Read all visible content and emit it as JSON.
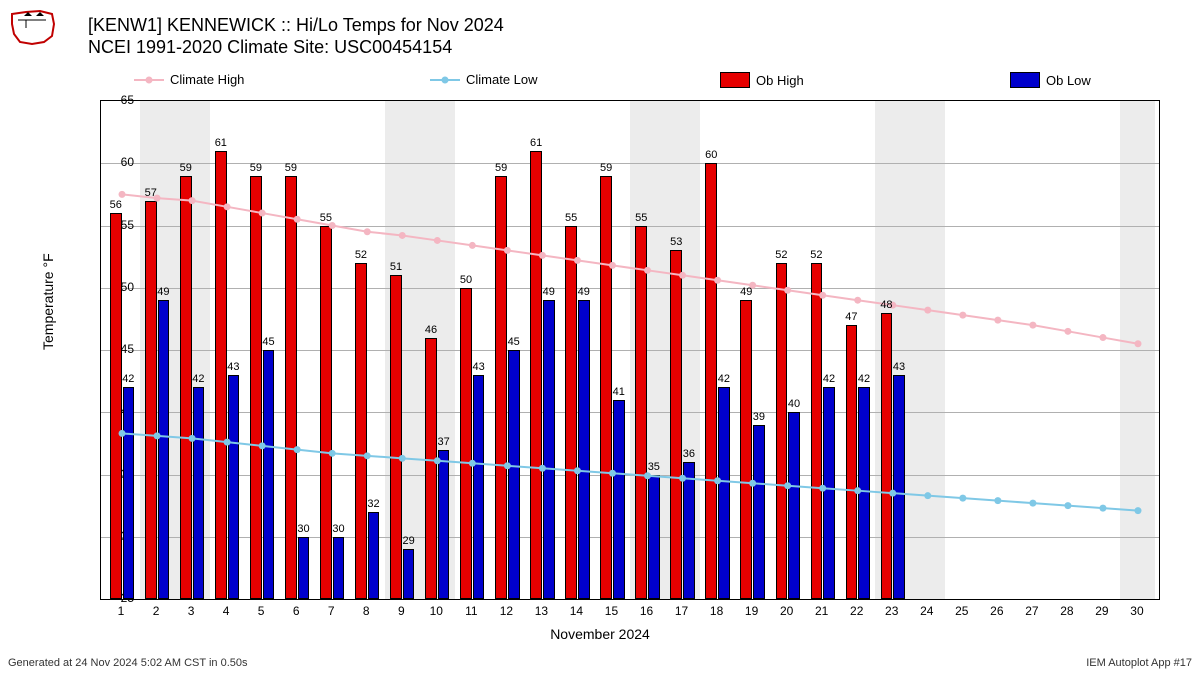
{
  "title_line1": "[KENW1] KENNEWICK :: Hi/Lo Temps for Nov 2024",
  "title_line2": "NCEI 1991-2020 Climate Site: USC00454154",
  "ylabel": "Temperature °F",
  "xlabel": "November 2024",
  "footer_left": "Generated at 24 Nov 2024 5:02 AM CST in 0.50s",
  "footer_right": "IEM Autoplot App #17",
  "legend": {
    "climate_high": "Climate High",
    "climate_low": "Climate Low",
    "ob_high": "Ob High",
    "ob_low": "Ob Low"
  },
  "chart": {
    "type": "bar+line",
    "background_color": "#ffffff",
    "grid_color": "#b0b0b0",
    "weekend_band_color": "#ececec",
    "ob_high_color": "#e60000",
    "ob_low_color": "#0000cc",
    "climate_high_color": "#f4b6c2",
    "climate_low_color": "#7fc8e6",
    "label_fontsize": 11,
    "axis_fontsize": 12,
    "title_fontsize": 18,
    "ylim": [
      25,
      65
    ],
    "ytick_step": 5,
    "days": [
      1,
      2,
      3,
      4,
      5,
      6,
      7,
      8,
      9,
      10,
      11,
      12,
      13,
      14,
      15,
      16,
      17,
      18,
      19,
      20,
      21,
      22,
      23,
      24,
      25,
      26,
      27,
      28,
      29,
      30
    ],
    "weekends": [
      [
        2,
        3
      ],
      [
        9,
        10
      ],
      [
        16,
        17
      ],
      [
        23,
        24
      ],
      [
        30,
        30
      ]
    ],
    "ob_high": [
      56,
      57,
      59,
      61,
      59,
      59,
      55,
      52,
      51,
      46,
      50,
      59,
      61,
      55,
      59,
      55,
      53,
      60,
      49,
      52,
      52,
      47,
      48
    ],
    "ob_low": [
      42,
      49,
      42,
      43,
      45,
      30,
      30,
      32,
      29,
      37,
      43,
      45,
      49,
      49,
      41,
      35,
      36,
      42,
      39,
      40,
      42,
      42,
      43
    ],
    "climate_high": [
      57.5,
      57.2,
      57.0,
      56.5,
      56.0,
      55.5,
      55.0,
      54.5,
      54.2,
      53.8,
      53.4,
      53.0,
      52.6,
      52.2,
      51.8,
      51.4,
      51.0,
      50.6,
      50.2,
      49.8,
      49.4,
      49.0,
      48.6,
      48.2,
      47.8,
      47.4,
      47.0,
      46.5,
      46.0,
      45.5
    ],
    "climate_low": [
      38.3,
      38.1,
      37.9,
      37.6,
      37.3,
      37.0,
      36.7,
      36.5,
      36.3,
      36.1,
      35.9,
      35.7,
      35.5,
      35.3,
      35.1,
      34.9,
      34.7,
      34.5,
      34.3,
      34.1,
      33.9,
      33.7,
      33.5,
      33.3,
      33.1,
      32.9,
      32.7,
      32.5,
      32.3,
      32.1
    ],
    "bar_half_width_days": 0.35,
    "marker_radius": 3.5,
    "line_width": 2
  }
}
